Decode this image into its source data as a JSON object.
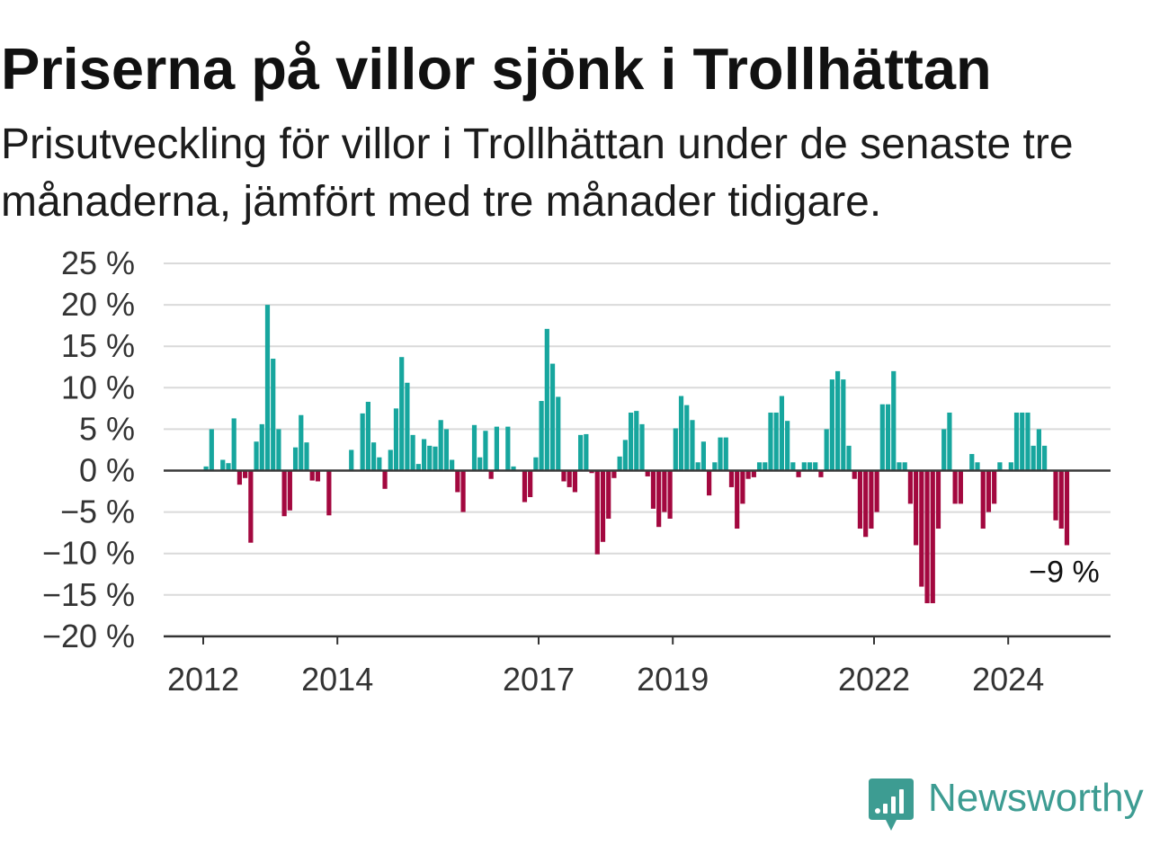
{
  "chart_data": {
    "type": "bar",
    "title": "Priserna på villor sjönk i Trollhättan",
    "subtitle": "Prisutveckling för villor i Trollhättan under de senaste tre månaderna, jämfört med tre månader tidigare.",
    "x": [
      "2012-01",
      "2012-02",
      "2012-03",
      "2012-04",
      "2012-05",
      "2012-06",
      "2012-07",
      "2012-08",
      "2012-09",
      "2012-10",
      "2012-11",
      "2012-12",
      "2013-01",
      "2013-02",
      "2013-03",
      "2013-04",
      "2013-05",
      "2013-06",
      "2013-07",
      "2013-08",
      "2013-09",
      "2013-10",
      "2013-11",
      "2013-12",
      "2014-01",
      "2014-02",
      "2014-03",
      "2014-04",
      "2014-05",
      "2014-06",
      "2014-07",
      "2014-08",
      "2014-09",
      "2014-10",
      "2014-11",
      "2014-12",
      "2015-01",
      "2015-02",
      "2015-03",
      "2015-04",
      "2015-05",
      "2015-06",
      "2015-07",
      "2015-08",
      "2015-09",
      "2015-10",
      "2015-11",
      "2015-12",
      "2016-01",
      "2016-02",
      "2016-03",
      "2016-04",
      "2016-05",
      "2016-06",
      "2016-07",
      "2016-08",
      "2016-09",
      "2016-10",
      "2016-11",
      "2016-12",
      "2017-01",
      "2017-02",
      "2017-03",
      "2017-04",
      "2017-05",
      "2017-06",
      "2017-07",
      "2017-08",
      "2017-09",
      "2017-10",
      "2017-11",
      "2017-12",
      "2018-01",
      "2018-02",
      "2018-03",
      "2018-04",
      "2018-05",
      "2018-06",
      "2018-07",
      "2018-08",
      "2018-09",
      "2018-10",
      "2018-11",
      "2018-12",
      "2019-01",
      "2019-02",
      "2019-03",
      "2019-04",
      "2019-05",
      "2019-06",
      "2019-07",
      "2019-08",
      "2019-09",
      "2019-10",
      "2019-11",
      "2019-12",
      "2020-01",
      "2020-02",
      "2020-03",
      "2020-04",
      "2020-05",
      "2020-06",
      "2020-07",
      "2020-08",
      "2020-09",
      "2020-10",
      "2020-11",
      "2020-12",
      "2021-01",
      "2021-02",
      "2021-03",
      "2021-04",
      "2021-05",
      "2021-06",
      "2021-07",
      "2021-08",
      "2021-09",
      "2021-10",
      "2021-11",
      "2021-12",
      "2022-01",
      "2022-02",
      "2022-03",
      "2022-04",
      "2022-05",
      "2022-06",
      "2022-07",
      "2022-08",
      "2022-09",
      "2022-10",
      "2022-11",
      "2022-12",
      "2023-01",
      "2023-02",
      "2023-03",
      "2023-04",
      "2023-05",
      "2023-06",
      "2023-07",
      "2023-08",
      "2023-09",
      "2023-10",
      "2023-11",
      "2023-12",
      "2024-01",
      "2024-02",
      "2024-03",
      "2024-04",
      "2024-05",
      "2024-06",
      "2024-07",
      "2024-08",
      "2024-09",
      "2024-10",
      "2024-11"
    ],
    "values": [
      0.5,
      5.0,
      0,
      1.3,
      0.9,
      6.3,
      -1.7,
      -0.9,
      -8.7,
      3.5,
      5.6,
      20.0,
      13.5,
      5.0,
      -5.5,
      -4.8,
      2.8,
      6.7,
      3.4,
      -1.2,
      -1.3,
      0,
      -5.4,
      0,
      0,
      0,
      2.5,
      0,
      6.9,
      8.3,
      3.4,
      1.6,
      -2.2,
      2.5,
      7.5,
      13.7,
      10.6,
      4.3,
      0.8,
      3.8,
      3.0,
      2.9,
      6.1,
      5.0,
      1.3,
      -2.6,
      -5.0,
      0,
      5.5,
      1.6,
      4.8,
      -1.0,
      5.3,
      0,
      5.3,
      0.5,
      0,
      -3.8,
      -3.2,
      1.6,
      8.4,
      17.1,
      12.9,
      8.9,
      -1.3,
      -2.0,
      -2.6,
      4.3,
      4.4,
      -0.3,
      -10.1,
      -8.6,
      -5.8,
      -0.9,
      1.7,
      3.7,
      7.0,
      7.2,
      5.6,
      -0.7,
      -4.6,
      -6.8,
      -5.0,
      -5.8,
      5.1,
      9.0,
      7.9,
      6.1,
      1.0,
      3.5,
      -3.0,
      1.0,
      4.0,
      4.0,
      -2.0,
      -7.0,
      -4.0,
      -1.0,
      -0.8,
      1.0,
      1.0,
      7.0,
      7.0,
      9.0,
      6.0,
      1.0,
      -0.8,
      1.0,
      1.0,
      1.0,
      -0.8,
      5.0,
      11.0,
      12.0,
      11.0,
      3.0,
      -1.0,
      -7.0,
      -8.0,
      -7.0,
      -5.0,
      8.0,
      8.0,
      12.0,
      1.0,
      1.0,
      -4.0,
      -9.0,
      -14.0,
      -16.0,
      -16.0,
      -7.0,
      5.0,
      7.0,
      -4.0,
      -4.0,
      0,
      2.0,
      1.0,
      -7.0,
      -5.0,
      -4.0,
      1.0,
      0,
      1.0,
      7.0,
      7.0,
      7.0,
      3.0,
      5.0,
      3.0,
      0,
      -6.0,
      -7.0,
      -9.0
    ],
    "ylim": [
      -20,
      25
    ],
    "yticks": {
      "values": [
        25,
        20,
        15,
        10,
        5,
        0,
        -5,
        -10,
        -15,
        -20
      ],
      "labels": [
        "25 %",
        "20 %",
        "15 %",
        "10 %",
        "5 %",
        "0 %",
        "−5 %",
        "−10 %",
        "−15 %",
        "−20 %"
      ]
    },
    "xticks": {
      "values": [
        "2012-01",
        "2014-01",
        "2017-01",
        "2019-01",
        "2022-01",
        "2024-01"
      ],
      "labels": [
        "2012",
        "2014",
        "2017",
        "2019",
        "2022",
        "2024"
      ]
    },
    "annotations": [
      {
        "x": "2024-11",
        "y": -9,
        "text": "−9 %"
      }
    ],
    "grid": true,
    "zero_line": true,
    "colors": {
      "positive": "#17a69e",
      "negative": "#a3083f"
    }
  },
  "brand": {
    "name": "Newsworthy",
    "icon": "newsworthy-logo-icon",
    "color": "#3d9c92"
  }
}
